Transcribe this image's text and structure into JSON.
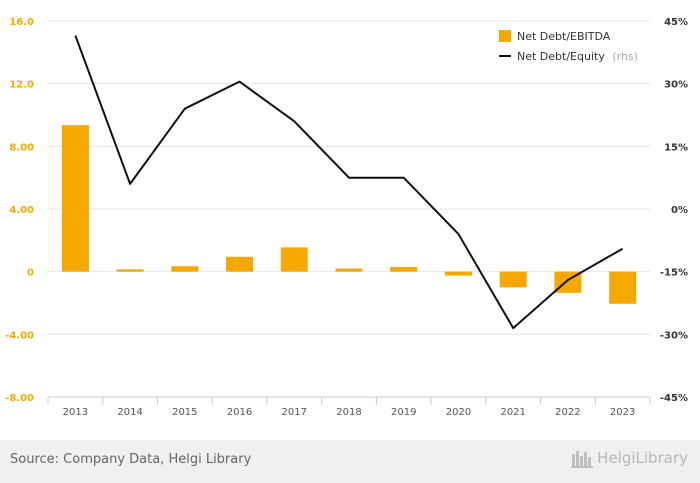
{
  "chart_data": {
    "type": "bar+line",
    "categories": [
      "2013",
      "2014",
      "2015",
      "2016",
      "2017",
      "2018",
      "2019",
      "2020",
      "2021",
      "2022",
      "2023"
    ],
    "series": [
      {
        "name": "Net Debt/EBITDA",
        "type": "bar",
        "axis": "left",
        "color": "#f5a800",
        "values": [
          9.35,
          0.15,
          0.35,
          0.95,
          1.55,
          0.2,
          0.3,
          -0.25,
          -1.0,
          -1.35,
          -2.05
        ]
      },
      {
        "name": "Net Debt/Equity",
        "name_suffix": "(rhs)",
        "type": "line",
        "axis": "right",
        "color": "#111111",
        "values": [
          41.5,
          6.0,
          24.0,
          30.5,
          21.0,
          7.5,
          7.5,
          -6.0,
          -28.5,
          -17.0,
          -9.5
        ]
      }
    ],
    "left_axis": {
      "min": -8,
      "max": 16,
      "ticks": [
        "16.0",
        "12.0",
        "8.00",
        "4.00",
        "0",
        "-4.00",
        "-8.00"
      ],
      "tick_values": [
        16,
        12,
        8,
        4,
        0,
        -4,
        -8
      ]
    },
    "right_axis": {
      "min": -45,
      "max": 45,
      "ticks": [
        "45%",
        "30%",
        "15%",
        "0%",
        "-15%",
        "-30%",
        "-45%"
      ],
      "tick_values": [
        45,
        30,
        15,
        0,
        -15,
        -30,
        -45
      ]
    },
    "grid": true,
    "legend_position": "top-right"
  },
  "footer": {
    "source": "Source: Company Data, Helgi Library",
    "brand": "HelgiLibrary"
  },
  "colors": {
    "accent": "#f5a800",
    "line": "#111111",
    "grid": "#e6e6e6",
    "footer_bg": "#f0f0f0"
  }
}
